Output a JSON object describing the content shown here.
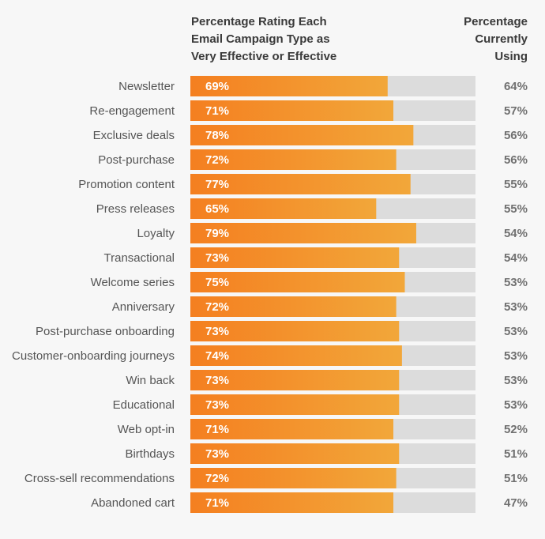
{
  "chart_data": {
    "type": "bar",
    "orientation": "horizontal",
    "header_left": "Percentage Rating Each\nEmail Campaign Type as\nVery Effective or Effective",
    "header_right": "Percentage\nCurrently\nUsing",
    "categories": [
      "Newsletter",
      "Re-engagement",
      "Exclusive deals",
      "Post-purchase",
      "Promotion content",
      "Press releases",
      "Loyalty",
      "Transactional",
      "Welcome series",
      "Anniversary",
      "Post-purchase onboarding",
      "Customer-onboarding journeys",
      "Win back",
      "Educational",
      "Web opt-in",
      "Birthdays",
      "Cross-sell recommendations",
      "Abandoned cart"
    ],
    "series": [
      {
        "values": [
          69,
          71,
          78,
          72,
          77,
          65,
          79,
          73,
          75,
          72,
          73,
          74,
          73,
          73,
          71,
          73,
          72,
          71
        ]
      },
      {
        "values": [
          64,
          57,
          56,
          56,
          55,
          55,
          54,
          54,
          53,
          53,
          53,
          53,
          53,
          53,
          52,
          51,
          51,
          47
        ]
      }
    ],
    "value_format": "%",
    "xlim": [
      0,
      100
    ],
    "colors": {
      "bar_start": "#f47f20",
      "bar_end": "#f2a73a",
      "track": "#dcdcdc",
      "background": "#f7f7f7"
    }
  }
}
